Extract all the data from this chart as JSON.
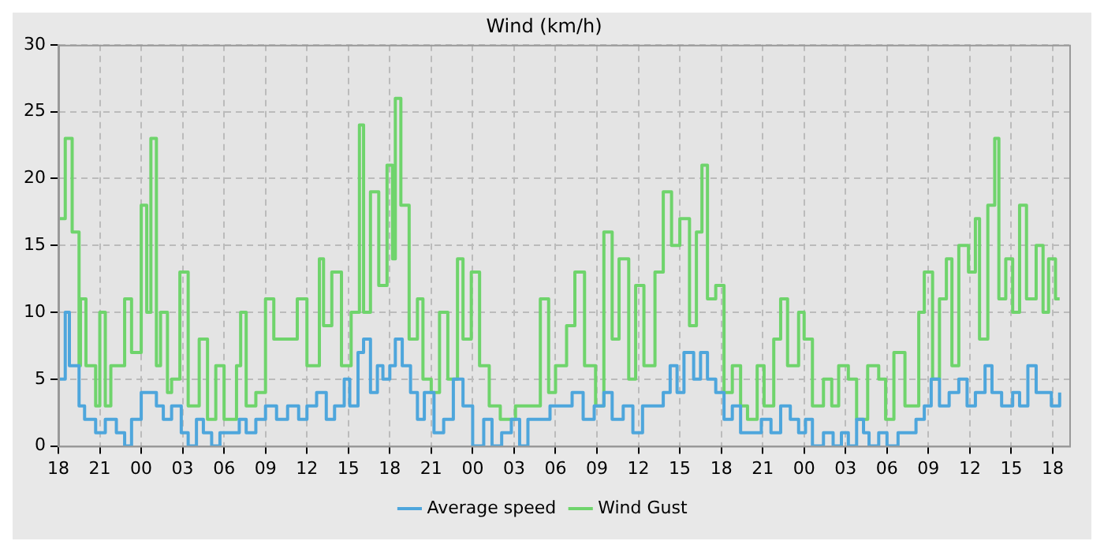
{
  "chart_data": {
    "type": "step",
    "title": "Wind (km/h)",
    "xlim": [
      18,
      91.2
    ],
    "xticks": [
      {
        "value": 18,
        "label": "18"
      },
      {
        "value": 21,
        "label": "21"
      },
      {
        "value": 24,
        "label": "00"
      },
      {
        "value": 27,
        "label": "03"
      },
      {
        "value": 30,
        "label": "06"
      },
      {
        "value": 33,
        "label": "09"
      },
      {
        "value": 36,
        "label": "12"
      },
      {
        "value": 39,
        "label": "15"
      },
      {
        "value": 42,
        "label": "18"
      },
      {
        "value": 45,
        "label": "21"
      },
      {
        "value": 48,
        "label": "00"
      },
      {
        "value": 51,
        "label": "03"
      },
      {
        "value": 54,
        "label": "06"
      },
      {
        "value": 57,
        "label": "09"
      },
      {
        "value": 60,
        "label": "12"
      },
      {
        "value": 63,
        "label": "15"
      },
      {
        "value": 66,
        "label": "18"
      },
      {
        "value": 69,
        "label": "21"
      },
      {
        "value": 72,
        "label": "00"
      },
      {
        "value": 75,
        "label": "03"
      },
      {
        "value": 78,
        "label": "06"
      },
      {
        "value": 81,
        "label": "09"
      },
      {
        "value": 84,
        "label": "12"
      },
      {
        "value": 87,
        "label": "15"
      },
      {
        "value": 90,
        "label": "18"
      }
    ],
    "ylim": [
      0,
      30
    ],
    "yticks": [
      0,
      5,
      10,
      15,
      20,
      25,
      30
    ],
    "grid": true,
    "legend": "bottom",
    "line_style": "solid",
    "marker": "none",
    "series": [
      {
        "name": "Average speed",
        "color": "#4ea6dc",
        "x": [
          18.0,
          18.5,
          18.8,
          19.5,
          19.9,
          20.7,
          21.4,
          22.2,
          22.8,
          23.3,
          24.0,
          25.1,
          25.6,
          26.2,
          26.9,
          27.4,
          28.0,
          28.5,
          29.1,
          29.7,
          31.1,
          31.6,
          32.3,
          33.0,
          33.8,
          34.6,
          35.4,
          36.0,
          36.7,
          37.4,
          38.0,
          38.7,
          39.1,
          39.7,
          40.1,
          40.6,
          41.1,
          41.5,
          42.0,
          42.4,
          42.9,
          43.5,
          44.0,
          44.5,
          45.2,
          45.9,
          46.6,
          47.3,
          48.0,
          48.8,
          49.4,
          50.1,
          50.8,
          51.4,
          52.0,
          53.6,
          55.2,
          56.0,
          56.8,
          57.5,
          58.1,
          58.9,
          59.6,
          60.3,
          61.8,
          62.3,
          62.8,
          63.3,
          64.0,
          64.5,
          65.0,
          65.6,
          66.2,
          66.8,
          67.4,
          68.9,
          69.6,
          70.3,
          71.0,
          71.6,
          72.1,
          72.6,
          73.4,
          74.1,
          74.7,
          75.2,
          75.8,
          76.3,
          76.7,
          77.4,
          78.0,
          78.8,
          80.1,
          80.7,
          81.2,
          81.8,
          82.5,
          83.2,
          83.8,
          84.4,
          85.1,
          85.6,
          86.3,
          87.1,
          87.6,
          88.2,
          88.8,
          89.9,
          90.5
        ],
        "values": [
          5,
          10,
          6,
          3,
          2,
          1,
          2,
          1,
          0,
          2,
          4,
          3,
          2,
          3,
          1,
          0,
          2,
          1,
          0,
          1,
          2,
          1,
          2,
          3,
          2,
          3,
          2,
          3,
          4,
          2,
          3,
          5,
          3,
          7,
          8,
          4,
          6,
          5,
          6,
          8,
          6,
          4,
          2,
          4,
          1,
          2,
          5,
          3,
          0,
          2,
          0,
          1,
          2,
          0,
          2,
          3,
          4,
          2,
          3,
          4,
          2,
          3,
          1,
          3,
          4,
          6,
          4,
          7,
          5,
          7,
          5,
          4,
          2,
          3,
          1,
          2,
          1,
          3,
          2,
          1,
          2,
          0,
          1,
          0,
          1,
          0,
          2,
          1,
          0,
          1,
          0,
          1,
          2,
          3,
          5,
          3,
          4,
          5,
          3,
          4,
          6,
          4,
          3,
          4,
          3,
          6,
          4,
          3,
          4
        ]
      },
      {
        "name": "Wind Gust",
        "color": "#6fd46c",
        "x": [
          18.0,
          18.5,
          19.0,
          19.5,
          19.6,
          20.0,
          20.7,
          21.0,
          21.4,
          21.8,
          22.8,
          23.3,
          24.0,
          24.4,
          24.7,
          25.1,
          25.4,
          25.9,
          26.2,
          26.8,
          27.4,
          28.2,
          28.8,
          29.4,
          30.0,
          30.9,
          31.2,
          31.6,
          32.3,
          33.0,
          33.6,
          34.6,
          35.3,
          36.0,
          36.9,
          37.2,
          37.8,
          38.5,
          39.2,
          39.8,
          40.1,
          40.6,
          41.2,
          41.8,
          42.2,
          42.4,
          42.8,
          43.4,
          44.0,
          44.4,
          45.0,
          45.6,
          46.2,
          46.9,
          47.3,
          47.9,
          48.5,
          49.2,
          50.0,
          51.1,
          51.9,
          52.9,
          53.5,
          54.0,
          54.8,
          55.4,
          56.1,
          56.9,
          57.5,
          58.1,
          58.6,
          59.3,
          59.8,
          60.4,
          61.2,
          61.8,
          62.4,
          63.0,
          63.7,
          64.2,
          64.6,
          65.0,
          65.6,
          66.2,
          66.8,
          67.4,
          67.9,
          68.6,
          69.1,
          69.8,
          70.3,
          70.8,
          71.6,
          72.0,
          72.6,
          73.4,
          74.0,
          74.5,
          75.2,
          75.8,
          76.6,
          77.4,
          77.9,
          78.5,
          79.3,
          80.3,
          80.7,
          81.3,
          81.8,
          82.3,
          82.7,
          83.2,
          83.9,
          84.4,
          84.7,
          85.3,
          85.8,
          86.1,
          86.6,
          87.1,
          87.6,
          88.1,
          88.8,
          89.3,
          89.7,
          90.2,
          90.5
        ],
        "values": [
          17,
          23,
          16,
          6,
          11,
          6,
          3,
          10,
          3,
          6,
          11,
          7,
          18,
          10,
          23,
          6,
          10,
          4,
          5,
          13,
          3,
          8,
          2,
          6,
          2,
          6,
          10,
          3,
          4,
          11,
          8,
          8,
          11,
          6,
          14,
          9,
          13,
          6,
          10,
          24,
          10,
          19,
          12,
          21,
          14,
          26,
          18,
          8,
          11,
          5,
          4,
          10,
          5,
          14,
          8,
          13,
          6,
          3,
          2,
          3,
          3,
          11,
          4,
          6,
          9,
          13,
          6,
          3,
          16,
          8,
          14,
          5,
          12,
          6,
          13,
          19,
          15,
          17,
          9,
          16,
          21,
          11,
          12,
          4,
          6,
          3,
          2,
          6,
          3,
          8,
          11,
          6,
          10,
          8,
          3,
          5,
          3,
          6,
          5,
          2,
          6,
          5,
          2,
          7,
          3,
          10,
          13,
          5,
          11,
          14,
          6,
          15,
          13,
          17,
          8,
          18,
          23,
          11,
          14,
          10,
          18,
          11,
          15,
          10,
          14,
          11,
          11
        ]
      }
    ]
  }
}
